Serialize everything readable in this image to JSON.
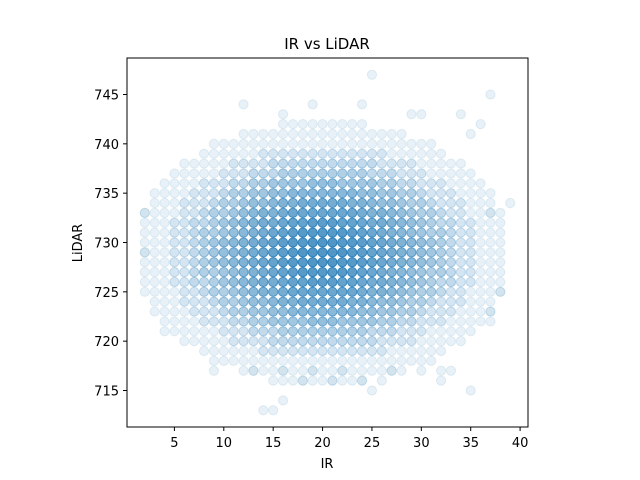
{
  "chart_data": {
    "type": "scatter",
    "title": "IR vs LiDAR",
    "xlabel": "IR",
    "ylabel": "LiDAR",
    "xlim": [
      0.2,
      40.8
    ],
    "ylim": [
      711.3,
      748.7
    ],
    "xticks": [
      5,
      10,
      15,
      20,
      25,
      30,
      35,
      40
    ],
    "yticks": [
      715,
      720,
      725,
      730,
      735,
      740,
      745
    ],
    "grid": false,
    "color": "#1f77b4",
    "point_alpha": 0.1,
    "x_range_core": [
      7,
      33
    ],
    "y_range_core": [
      721,
      737
    ],
    "outliers": [
      {
        "x": 25,
        "y": 747
      },
      {
        "x": 37,
        "y": 745
      },
      {
        "x": 12,
        "y": 744
      },
      {
        "x": 19,
        "y": 744
      },
      {
        "x": 24,
        "y": 744
      },
      {
        "x": 16,
        "y": 743
      },
      {
        "x": 29,
        "y": 743
      },
      {
        "x": 30,
        "y": 743
      },
      {
        "x": 34,
        "y": 743
      },
      {
        "x": 36,
        "y": 742
      },
      {
        "x": 35,
        "y": 741
      },
      {
        "x": 39,
        "y": 734
      },
      {
        "x": 2,
        "y": 733
      },
      {
        "x": 37,
        "y": 733
      },
      {
        "x": 2,
        "y": 729
      },
      {
        "x": 38,
        "y": 725
      },
      {
        "x": 37,
        "y": 723
      },
      {
        "x": 37,
        "y": 722
      },
      {
        "x": 4,
        "y": 721
      },
      {
        "x": 9,
        "y": 717
      },
      {
        "x": 13,
        "y": 717
      },
      {
        "x": 16,
        "y": 717
      },
      {
        "x": 19,
        "y": 717
      },
      {
        "x": 22,
        "y": 717
      },
      {
        "x": 27,
        "y": 717
      },
      {
        "x": 30,
        "y": 717
      },
      {
        "x": 32,
        "y": 717
      },
      {
        "x": 33,
        "y": 717
      },
      {
        "x": 15,
        "y": 716
      },
      {
        "x": 18,
        "y": 716
      },
      {
        "x": 21,
        "y": 716
      },
      {
        "x": 24,
        "y": 716
      },
      {
        "x": 26,
        "y": 716
      },
      {
        "x": 32,
        "y": 716
      },
      {
        "x": 25,
        "y": 715
      },
      {
        "x": 35,
        "y": 715
      },
      {
        "x": 16,
        "y": 714
      },
      {
        "x": 14,
        "y": 713
      },
      {
        "x": 15,
        "y": 713
      }
    ]
  }
}
